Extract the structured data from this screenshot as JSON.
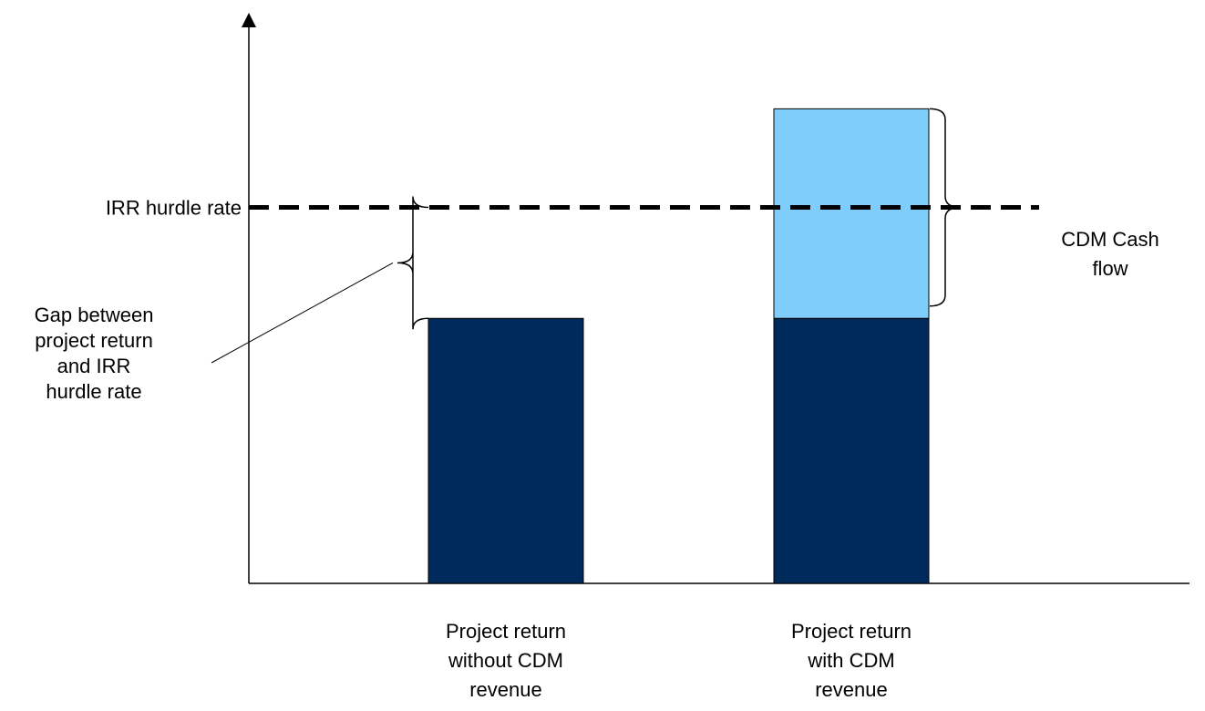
{
  "chart_data": {
    "type": "bar",
    "stacked": true,
    "categories": [
      [
        "Project return",
        "without CDM",
        "revenue"
      ],
      [
        "Project return",
        "with CDM",
        "revenue"
      ]
    ],
    "series": [
      {
        "values": [
          4.3,
          4.3
        ],
        "color": "#002a5c"
      },
      {
        "values": [
          0,
          3.4
        ],
        "color": "#7fcdfb"
      }
    ],
    "ylim": [
      0,
      8.8
    ],
    "reference_line": {
      "label": "IRR hurdle rate",
      "value": 6.1,
      "style": "dashed"
    },
    "annotations": [
      {
        "lines": [
          "Gap between",
          "project return",
          "and IRR",
          "hurdle rate"
        ],
        "from": 4.3,
        "to": 6.1,
        "category": 0
      },
      {
        "lines": [
          "CDM Cash",
          "flow"
        ],
        "from": 4.5,
        "to": 7.7,
        "category": 1
      }
    ],
    "grid": false,
    "legend": "none",
    "xlabel": "",
    "ylabel": ""
  }
}
